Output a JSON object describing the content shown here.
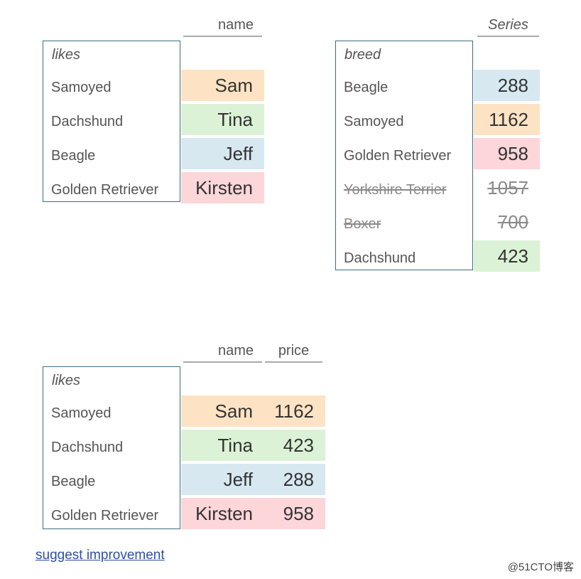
{
  "top_left": {
    "column_header": "name",
    "index_name": "likes",
    "rows": [
      {
        "index": "Samoyed",
        "name": "Sam",
        "color": "#fde3c3"
      },
      {
        "index": "Dachshund",
        "name": "Tina",
        "color": "#dcf2d6"
      },
      {
        "index": "Beagle",
        "name": "Jeff",
        "color": "#d8e8f1"
      },
      {
        "index": "Golden Retriever",
        "name": "Kirsten",
        "color": "#fcd6d8"
      }
    ]
  },
  "top_right": {
    "column_header": "Series",
    "index_name": "breed",
    "rows": [
      {
        "index": "Beagle",
        "value": "288",
        "color": "#d8e8f1",
        "struck": false
      },
      {
        "index": "Samoyed",
        "value": "1162",
        "color": "#fde3c3",
        "struck": false
      },
      {
        "index": "Golden Retriever",
        "value": "958",
        "color": "#fcd6d8",
        "struck": false
      },
      {
        "index": "Yorkshire Terrier",
        "value": "1057",
        "color": "",
        "struck": true
      },
      {
        "index": "Boxer",
        "value": "700",
        "color": "",
        "struck": true
      },
      {
        "index": "Dachshund",
        "value": "423",
        "color": "#dcf2d6",
        "struck": false
      }
    ]
  },
  "bottom": {
    "column_headers": [
      "name",
      "price"
    ],
    "index_name": "likes",
    "rows": [
      {
        "index": "Samoyed",
        "name": "Sam",
        "price": "1162",
        "color": "#fde3c3"
      },
      {
        "index": "Dachshund",
        "name": "Tina",
        "price": "423",
        "color": "#dcf2d6"
      },
      {
        "index": "Beagle",
        "name": "Jeff",
        "price": "288",
        "color": "#d8e8f1"
      },
      {
        "index": "Golden Retriever",
        "name": "Kirsten",
        "price": "958",
        "color": "#fcd6d8"
      }
    ]
  },
  "footer": {
    "link_text": "suggest improvement",
    "watermark": "@51CTO博客"
  }
}
